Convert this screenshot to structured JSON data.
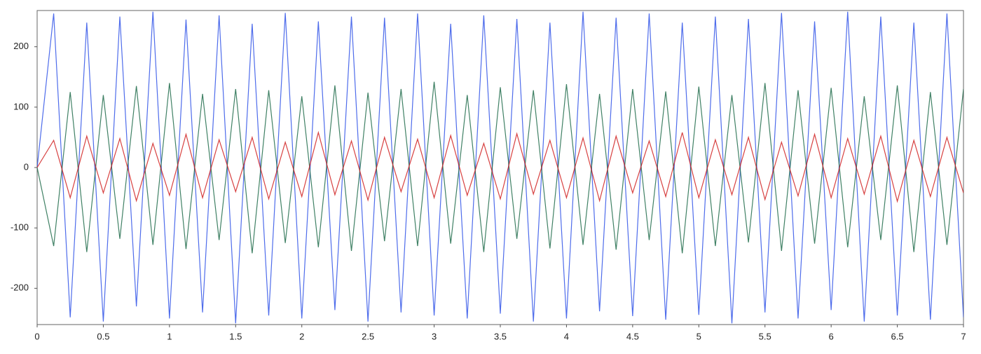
{
  "chart_data": {
    "type": "line",
    "x": [
      0,
      0.125,
      0.25,
      0.375,
      0.5,
      0.625,
      0.75,
      0.875,
      1,
      1.125,
      1.25,
      1.375,
      1.5,
      1.625,
      1.75,
      1.875,
      2,
      2.125,
      2.25,
      2.375,
      2.5,
      2.625,
      2.75,
      2.875,
      3,
      3.125,
      3.25,
      3.375,
      3.5,
      3.625,
      3.75,
      3.875,
      4,
      4.125,
      4.25,
      4.375,
      4.5,
      4.625,
      4.75,
      4.875,
      5,
      5.125,
      5.25,
      5.375,
      5.5,
      5.625,
      5.75,
      5.875,
      6,
      6.125,
      6.25,
      6.375,
      6.5,
      6.625,
      6.75,
      6.875,
      7
    ],
    "series": [
      {
        "color": "#2f52e8",
        "values": [
          0,
          255,
          -248,
          240,
          -255,
          250,
          -230,
          258,
          -250,
          245,
          -240,
          252,
          -258,
          238,
          -245,
          256,
          -250,
          242,
          -236,
          250,
          -255,
          248,
          -240,
          255,
          -245,
          238,
          -250,
          252,
          -242,
          246,
          -255,
          240,
          -250,
          258,
          -238,
          248,
          -246,
          255,
          -252,
          240,
          -244,
          250,
          -258,
          246,
          -240,
          256,
          -250,
          242,
          -236,
          258,
          -255,
          250,
          -245,
          240,
          -252,
          255,
          -248
        ]
      },
      {
        "color": "#1f6b4a",
        "values": [
          0,
          -130,
          125,
          -140,
          120,
          -118,
          135,
          -128,
          140,
          -135,
          122,
          -120,
          130,
          -142,
          128,
          -125,
          118,
          -132,
          136,
          -138,
          124,
          -122,
          130,
          -130,
          142,
          -126,
          120,
          -140,
          133,
          -118,
          128,
          -134,
          138,
          -128,
          122,
          -136,
          130,
          -120,
          126,
          -142,
          134,
          -130,
          120,
          -124,
          140,
          -138,
          128,
          -126,
          132,
          -132,
          118,
          -120,
          136,
          -140,
          125,
          -128,
          130
        ]
      },
      {
        "color": "#d02020",
        "values": [
          0,
          45,
          -50,
          52,
          -42,
          48,
          -55,
          40,
          -46,
          55,
          -50,
          46,
          -40,
          50,
          -52,
          42,
          -48,
          58,
          -45,
          44,
          -54,
          50,
          -40,
          47,
          -50,
          53,
          -46,
          40,
          -52,
          56,
          -44,
          45,
          -50,
          49,
          -55,
          52,
          -42,
          44,
          -48,
          58,
          -50,
          46,
          -45,
          50,
          -53,
          42,
          -47,
          55,
          -50,
          48,
          -44,
          52,
          -56,
          45,
          -48,
          50,
          -42
        ]
      }
    ],
    "xlim": [
      0,
      7
    ],
    "xticks": [
      0,
      0.5,
      1,
      1.5,
      2,
      2.5,
      3,
      3.5,
      4,
      4.5,
      5,
      5.5,
      6,
      6.5,
      7
    ],
    "ylim": [
      -260,
      260
    ],
    "yticks": [
      -200,
      -100,
      0,
      100,
      200
    ],
    "grid": false
  }
}
